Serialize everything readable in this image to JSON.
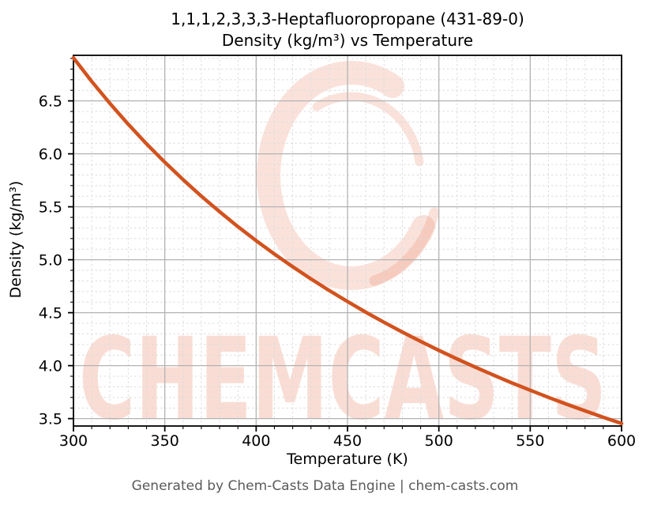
{
  "title": {
    "line1": "1,1,1,2,3,3,3-Heptafluoropropane (431-89-0)",
    "line2": "Density (kg/m³) vs Temperature"
  },
  "footer": {
    "text": "Generated by Chem-Casts Data Engine | chem-casts.com"
  },
  "watermark": {
    "text": "CHEMCASTS",
    "base_color": "#e0552a",
    "text_opacity": 0.2,
    "logo_opacity": 0.17
  },
  "colors": {
    "curve": "#d2521e",
    "major_grid": "#b3b3b3",
    "minor_grid": "#dcdcdc",
    "spine": "#000000",
    "tick_text": "#000000",
    "title_text": "#000000",
    "footer_text": "#5a5a5a",
    "background": "#ffffff"
  },
  "chart_data": {
    "type": "line",
    "title": "1,1,1,2,3,3,3-Heptafluoropropane (431-89-0) — Density (kg/m³) vs Temperature",
    "xlabel": "Temperature (K)",
    "ylabel": "Density (kg/m³)",
    "xlim": [
      300,
      600
    ],
    "ylim": [
      3.43,
      6.93
    ],
    "xticks": [
      300,
      350,
      400,
      450,
      500,
      550,
      600
    ],
    "yticks": [
      3.5,
      4.0,
      4.5,
      5.0,
      5.5,
      6.0,
      6.5
    ],
    "x_minor_step": 10,
    "y_minor_step": 0.1,
    "grid": {
      "major": "solid",
      "minor": "dashed"
    },
    "legend": "none",
    "series": [
      {
        "name": "Density (kg/m³)",
        "color": "#d2521e",
        "x": [
          300,
          310,
          320,
          330,
          340,
          350,
          360,
          370,
          380,
          390,
          400,
          410,
          420,
          430,
          440,
          450,
          460,
          470,
          480,
          490,
          500,
          510,
          520,
          530,
          540,
          550,
          560,
          570,
          580,
          590,
          600
        ],
        "y": [
          6.907,
          6.684,
          6.475,
          6.279,
          6.094,
          5.92,
          5.756,
          5.6,
          5.453,
          5.313,
          5.18,
          5.054,
          4.934,
          4.819,
          4.709,
          4.605,
          4.505,
          4.409,
          4.317,
          4.229,
          4.144,
          4.063,
          3.985,
          3.91,
          3.837,
          3.768,
          3.7,
          3.635,
          3.573,
          3.512,
          3.454
        ]
      }
    ]
  }
}
